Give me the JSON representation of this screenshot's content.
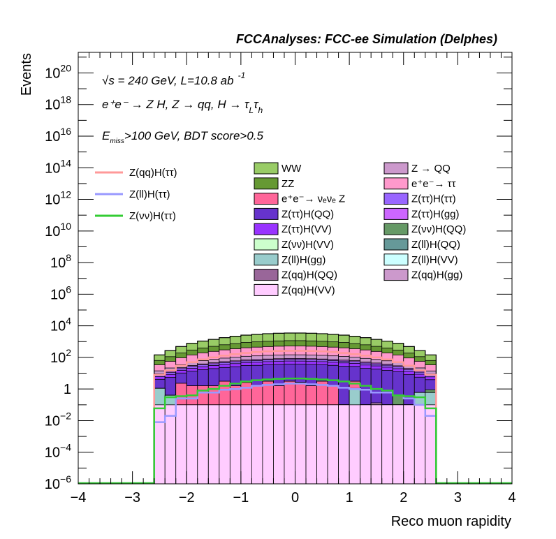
{
  "chart_data": {
    "type": "histogram-stacked",
    "title": "FCCAnalyses: FCC-ee Simulation (Delphes)",
    "xlabel": "Reco muon rapidity",
    "ylabel": "Events",
    "xlim": [
      -4,
      4
    ],
    "ylim": [
      1e-06,
      2e+21
    ],
    "yscale": "log",
    "x_ticks": [
      "−4",
      "−3",
      "−2",
      "−1",
      "0",
      "1",
      "2",
      "3",
      "4"
    ],
    "y_ticks": [
      {
        "v": 1e-06,
        "base": "10",
        "exp": "−6"
      },
      {
        "v": 0.0001,
        "base": "10",
        "exp": "−4"
      },
      {
        "v": 0.01,
        "base": "10",
        "exp": "−2"
      },
      {
        "v": 1,
        "base": "1",
        "exp": ""
      },
      {
        "v": 100.0,
        "base": "10",
        "exp": "2"
      },
      {
        "v": 10000.0,
        "base": "10",
        "exp": "4"
      },
      {
        "v": 1000000.0,
        "base": "10",
        "exp": "6"
      },
      {
        "v": 100000000.0,
        "base": "10",
        "exp": "8"
      },
      {
        "v": 10000000000.0,
        "base": "10",
        "exp": "10"
      },
      {
        "v": 1000000000000.0,
        "base": "10",
        "exp": "12"
      },
      {
        "v": 100000000000000.0,
        "base": "10",
        "exp": "14"
      },
      {
        "v": 1e+16,
        "base": "10",
        "exp": "16"
      },
      {
        "v": 1e+18,
        "base": "10",
        "exp": "18"
      },
      {
        "v": 1e+20,
        "base": "10",
        "exp": "20"
      }
    ],
    "annotations": {
      "energy": "√s = 240 GeV, L=10.8 ab",
      "energy_sup": "-1",
      "process": "e⁺e⁻ → Z H, Z → qq, H → τ",
      "process_sub1": "L",
      "process_mid": "τ",
      "process_sub2": "h",
      "cut_E": "E",
      "cut_sub": "miss",
      "cut_rest": ">100 GeV, BDT score>0.5"
    },
    "bin_edges": [
      -2.6,
      -2.4,
      -2.2,
      -2.0,
      -1.8,
      -1.6,
      -1.4,
      -1.2,
      -1.0,
      -0.8,
      -0.6,
      -0.4,
      -0.2,
      0.0,
      0.2,
      0.4,
      0.6,
      0.8,
      1.0,
      1.2,
      1.4,
      1.6,
      1.8,
      2.0,
      2.2,
      2.4,
      2.6
    ],
    "stack_totals": [
      150,
      280,
      500,
      800,
      1100,
      1400,
      1800,
      2200,
      2600,
      2900,
      3200,
      3400,
      3500,
      3500,
      3400,
      3200,
      2900,
      2600,
      2200,
      1800,
      1400,
      1100,
      800,
      500,
      280,
      150
    ],
    "stack": [
      {
        "name": "Z(qq)H(VV)",
        "color": "#ffccff",
        "values": [
          0.1,
          0.1,
          0.1,
          0.1,
          0.1,
          0.1,
          0.1,
          0.1,
          0.1,
          0.1,
          0.1,
          0.1,
          0.1,
          0.1,
          0.1,
          0.1,
          0.1,
          0.1,
          0.1,
          0.1,
          0.1,
          0.1,
          0.1,
          0.1,
          0.1,
          0.1
        ]
      },
      {
        "name": "Z(ll)H(gg)",
        "color": "#99cccc",
        "values": [
          1,
          0.3,
          0.001,
          0.001,
          0.001,
          0.001,
          0.001,
          0.001,
          0.001,
          0.001,
          0.001,
          0.001,
          0.001,
          0.001,
          0.001,
          0.001,
          0.001,
          0.001,
          1,
          0.001,
          0.001,
          0.001,
          0.001,
          0.001,
          0.5,
          0.5
        ]
      },
      {
        "name": "e⁺e⁻→ νₑνₑ Z",
        "color": "#ff6699",
        "values": [
          0,
          0,
          2.2,
          1.5,
          1.5,
          1.5,
          3,
          1.5,
          2.5,
          1.5,
          3,
          1.5,
          3,
          2.5,
          1.5,
          3,
          1.5,
          0,
          2,
          0,
          0,
          0,
          0,
          0,
          0,
          0
        ]
      },
      {
        "name": "Z(qq)H(gg)",
        "color": "#cc99cc",
        "values": [
          0,
          0,
          0,
          0,
          0,
          0,
          0,
          0,
          0,
          0,
          0,
          0,
          0,
          0,
          0,
          0,
          0,
          0,
          0,
          0,
          0.03,
          0,
          0,
          0,
          0,
          0
        ]
      },
      {
        "name": "Z(νν)H(QQ)",
        "color": "#669966",
        "values": [
          0,
          0,
          0,
          0,
          0,
          0,
          0,
          0,
          0,
          0,
          0,
          0,
          0,
          0,
          0,
          0,
          0,
          0,
          0,
          0,
          0,
          0,
          0.3,
          0,
          0,
          0.3
        ]
      },
      {
        "name": "Z(ττ)H(QQ)",
        "color": "#6633cc",
        "values": [
          3,
          5,
          8,
          12,
          15,
          18,
          20,
          24,
          28,
          30,
          32,
          34,
          35,
          35,
          34,
          32,
          30,
          28,
          24,
          20,
          18,
          15,
          12,
          8,
          5,
          3
        ]
      },
      {
        "name": "Z(ττ)H(VV)",
        "color": "#9933ff",
        "values": [
          2,
          3,
          5,
          7,
          9,
          11,
          13,
          15,
          17,
          18,
          19,
          20,
          21,
          21,
          20,
          19,
          18,
          17,
          15,
          13,
          11,
          9,
          7,
          5,
          3,
          2
        ]
      },
      {
        "name": "Z(ττ)H(ττ)",
        "color": "#9966ff",
        "values": [
          2,
          3,
          4,
          6,
          8,
          9,
          11,
          12,
          13,
          14,
          15,
          16,
          16,
          16,
          16,
          15,
          14,
          13,
          12,
          11,
          9,
          8,
          6,
          4,
          3,
          2
        ]
      },
      {
        "name": "Z(ττ)H(gg)",
        "color": "#cc66ff",
        "values": [
          1,
          2,
          3,
          4,
          5,
          6,
          7,
          8,
          9,
          10,
          10,
          11,
          11,
          11,
          11,
          10,
          10,
          9,
          8,
          7,
          6,
          5,
          4,
          3,
          2,
          1
        ]
      },
      {
        "name": "Z → QQ",
        "color": "#cc99cc",
        "values": [
          5,
          8,
          12,
          18,
          24,
          30,
          36,
          42,
          48,
          52,
          56,
          58,
          60,
          60,
          58,
          56,
          52,
          48,
          42,
          36,
          30,
          24,
          18,
          12,
          8,
          5
        ]
      },
      {
        "name": "e⁺e⁻→ ττ",
        "color": "#ff99cc",
        "values": [
          20,
          35,
          60,
          95,
          130,
          165,
          210,
          250,
          290,
          320,
          350,
          370,
          380,
          380,
          370,
          350,
          320,
          290,
          250,
          210,
          165,
          130,
          95,
          60,
          35,
          20
        ]
      },
      {
        "name": "ZZ",
        "color": "#669933",
        "values": [
          30,
          55,
          95,
          150,
          205,
          260,
          330,
          400,
          470,
          520,
          570,
          600,
          620,
          620,
          600,
          570,
          520,
          470,
          400,
          330,
          260,
          205,
          150,
          95,
          55,
          30
        ]
      },
      {
        "name": "WW",
        "color": "#99cc66",
        "values": [
          80,
          160,
          300,
          490,
          680,
          880,
          1150,
          1420,
          1700,
          1910,
          2120,
          2270,
          2330,
          2330,
          2270,
          2120,
          1910,
          1700,
          1420,
          1150,
          880,
          680,
          490,
          300,
          160,
          80
        ]
      }
    ],
    "overlays": [
      {
        "name": "Z(qq)H(ττ)",
        "color": "#ff9999",
        "values": [
          8,
          15,
          30,
          50,
          75,
          100,
          130,
          160,
          190,
          220,
          240,
          255,
          260,
          260,
          255,
          240,
          220,
          190,
          160,
          130,
          100,
          75,
          50,
          30,
          15,
          8
        ]
      },
      {
        "name": "Z(ll)H(ττ)",
        "color": "#9999ff",
        "values": [
          0.008,
          0.02,
          0.25,
          0.25,
          0.6,
          0.6,
          0.9,
          1.0,
          1.2,
          1.6,
          1.8,
          2.0,
          2.2,
          2.2,
          2.0,
          1.8,
          1.6,
          1.2,
          1.0,
          0.9,
          0.6,
          0.6,
          0.4,
          0.25,
          0.1,
          0.02
        ]
      },
      {
        "name": "Z(νν)H(ττ)",
        "color": "#33cc33",
        "values": [
          0.06,
          0.3,
          0.35,
          0.4,
          0.8,
          1.0,
          1.6,
          2.2,
          3.0,
          3.6,
          4.0,
          4.4,
          4.6,
          4.6,
          4.4,
          4.0,
          3.6,
          3.0,
          2.2,
          1.6,
          1.0,
          0.8,
          0.4,
          0.35,
          0.3,
          0.06
        ]
      }
    ],
    "legend": {
      "placement": "top",
      "overlays_col": [
        "Z(qq)H(ττ)",
        "Z(ll)H(ττ)",
        "Z(νν)H(ττ)"
      ],
      "col1": [
        {
          "label": "WW",
          "color": "#99cc66"
        },
        {
          "label": "ZZ",
          "color": "#669933"
        },
        {
          "label": "e⁺e⁻→ νₑνₑ Z",
          "color": "#ff6699"
        },
        {
          "label": "Z(ττ)H(QQ)",
          "color": "#6633cc"
        },
        {
          "label": "Z(ττ)H(VV)",
          "color": "#9933ff"
        },
        {
          "label": "Z(νν)H(VV)",
          "color": "#ccffcc"
        },
        {
          "label": "Z(ll)H(gg)",
          "color": "#99cccc"
        },
        {
          "label": "Z(qq)H(QQ)",
          "color": "#996699"
        },
        {
          "label": "Z(qq)H(VV)",
          "color": "#ffccff"
        }
      ],
      "col2": [
        {
          "label": "Z → QQ",
          "color": "#cc99cc"
        },
        {
          "label": "e⁺e⁻→ ττ",
          "color": "#ff99cc"
        },
        {
          "label": "Z(ττ)H(ττ)",
          "color": "#9966ff"
        },
        {
          "label": "Z(ττ)H(gg)",
          "color": "#cc66ff"
        },
        {
          "label": "Z(νν)H(QQ)",
          "color": "#669966"
        },
        {
          "label": "Z(ll)H(QQ)",
          "color": "#669999"
        },
        {
          "label": "Z(ll)H(VV)",
          "color": "#ccffff"
        },
        {
          "label": "Z(qq)H(gg)",
          "color": "#cc99cc"
        }
      ]
    }
  }
}
